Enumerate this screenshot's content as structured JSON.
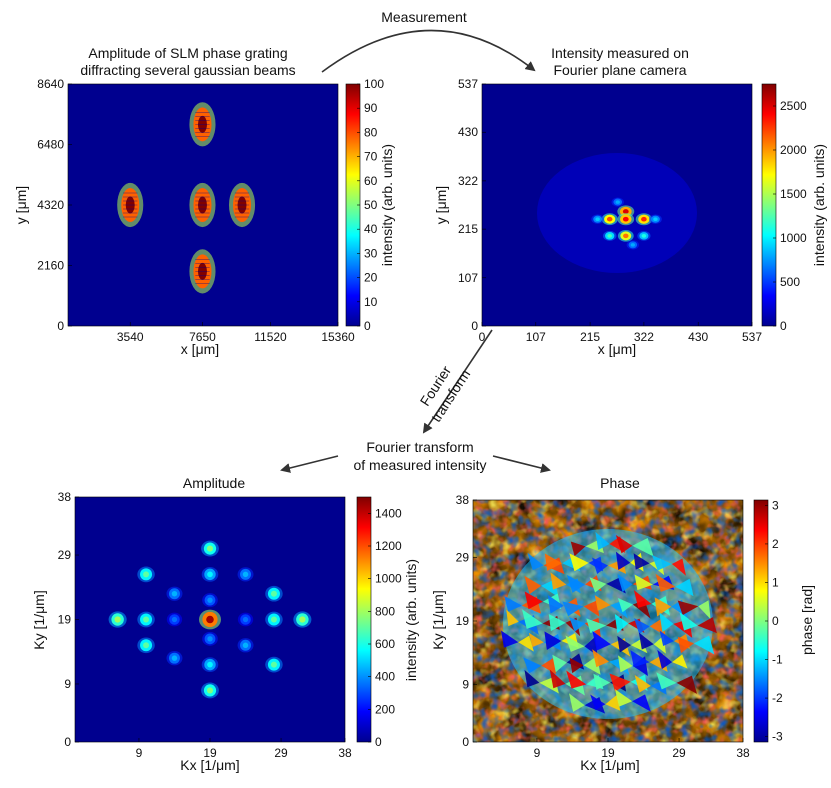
{
  "figure": {
    "top_arrow_label": "Measurement",
    "side_arrow_label": [
      "Fourier",
      "transform"
    ],
    "center_label": [
      "Fourier transform",
      "of measured intensity"
    ]
  },
  "colormap": "jet",
  "chart_data": [
    {
      "type": "heatmap",
      "title": [
        "Amplitude of SLM phase grating",
        "diffracting several gaussian beams"
      ],
      "xlabel": "x [μm]",
      "ylabel": "y [μm]",
      "xticks": [
        "3540",
        "7650",
        "11520",
        "15360"
      ],
      "yticks": [
        "0",
        "2160",
        "4320",
        "6480",
        "8640"
      ],
      "xlim": [
        0,
        15360
      ],
      "ylim": [
        0,
        8640
      ],
      "colorbar": {
        "label": "intensity (arb. units)",
        "ticks": [
          "0",
          "10",
          "20",
          "30",
          "40",
          "50",
          "60",
          "70",
          "80",
          "90",
          "100"
        ],
        "range": [
          0,
          100
        ]
      },
      "spots": [
        {
          "x": 3540,
          "y": 4320,
          "value": 100
        },
        {
          "x": 7650,
          "y": 4320,
          "value": 100
        },
        {
          "x": 9900,
          "y": 4320,
          "value": 100
        },
        {
          "x": 7650,
          "y": 7200,
          "value": 100
        },
        {
          "x": 7650,
          "y": 1950,
          "value": 100
        }
      ]
    },
    {
      "type": "heatmap",
      "title": [
        "Intensity measured on",
        "Fourier plane camera"
      ],
      "xlabel": "x [μm]",
      "ylabel": "y [μm]",
      "xticks": [
        "0",
        "107",
        "215",
        "322",
        "430",
        "537"
      ],
      "yticks": [
        "0",
        "107",
        "215",
        "322",
        "430",
        "537"
      ],
      "xlim": [
        0,
        537
      ],
      "ylim": [
        0,
        537
      ],
      "colorbar": {
        "label": "intensity (arb. units)",
        "ticks": [
          "0",
          "500",
          "1000",
          "1500",
          "2000",
          "2500"
        ],
        "range": [
          0,
          2750
        ]
      },
      "spots": [
        {
          "x": 286,
          "y": 254,
          "value": 2500
        },
        {
          "x": 254,
          "y": 237,
          "value": 2200
        },
        {
          "x": 286,
          "y": 237,
          "value": 2400
        },
        {
          "x": 322,
          "y": 237,
          "value": 2300
        },
        {
          "x": 286,
          "y": 200,
          "value": 2100
        },
        {
          "x": 254,
          "y": 200,
          "value": 1200
        },
        {
          "x": 322,
          "y": 200,
          "value": 1100
        },
        {
          "x": 230,
          "y": 237,
          "value": 900
        },
        {
          "x": 345,
          "y": 237,
          "value": 900
        },
        {
          "x": 270,
          "y": 275,
          "value": 800
        },
        {
          "x": 300,
          "y": 180,
          "value": 800
        }
      ]
    },
    {
      "type": "heatmap",
      "title": "Amplitude",
      "xlabel": "Kx [1/μm]",
      "ylabel": "Ky [1/μm]",
      "xticks": [
        "9",
        "19",
        "29",
        "38"
      ],
      "yticks": [
        "0",
        "9",
        "19",
        "29",
        "38"
      ],
      "xlim": [
        0,
        38
      ],
      "ylim": [
        0,
        38
      ],
      "colorbar": {
        "label": "intensity (arb. units)",
        "ticks": [
          "0",
          "200",
          "400",
          "600",
          "800",
          "1000",
          "1200",
          "1400"
        ],
        "range": [
          0,
          1500
        ]
      },
      "spots": [
        {
          "x": 19,
          "y": 19,
          "value": 1450
        },
        {
          "x": 19,
          "y": 30,
          "value": 750
        },
        {
          "x": 19,
          "y": 8,
          "value": 750
        },
        {
          "x": 6,
          "y": 19,
          "value": 800
        },
        {
          "x": 32,
          "y": 19,
          "value": 800
        },
        {
          "x": 10,
          "y": 26,
          "value": 700
        },
        {
          "x": 10,
          "y": 15,
          "value": 700
        },
        {
          "x": 10,
          "y": 19,
          "value": 700
        },
        {
          "x": 28,
          "y": 23,
          "value": 700
        },
        {
          "x": 28,
          "y": 12,
          "value": 700
        },
        {
          "x": 28,
          "y": 19,
          "value": 700
        },
        {
          "x": 19,
          "y": 26,
          "value": 550
        },
        {
          "x": 19,
          "y": 12,
          "value": 550
        },
        {
          "x": 14,
          "y": 23,
          "value": 450
        },
        {
          "x": 14,
          "y": 13,
          "value": 450
        },
        {
          "x": 24,
          "y": 26,
          "value": 450
        },
        {
          "x": 24,
          "y": 15,
          "value": 450
        },
        {
          "x": 14,
          "y": 19,
          "value": 350
        },
        {
          "x": 24,
          "y": 19,
          "value": 350
        },
        {
          "x": 19,
          "y": 22,
          "value": 400
        },
        {
          "x": 19,
          "y": 16,
          "value": 400
        }
      ]
    },
    {
      "type": "heatmap",
      "title": "Phase",
      "xlabel": "Kx [1/μm]",
      "ylabel": "Ky [1/μm]",
      "xticks": [
        "9",
        "19",
        "29",
        "38"
      ],
      "yticks": [
        "0",
        "9",
        "19",
        "29",
        "38"
      ],
      "xlim": [
        0,
        38
      ],
      "ylim": [
        0,
        38
      ],
      "colorbar": {
        "label": "phase [rad]",
        "ticks": [
          "-3",
          "-2",
          "-1",
          "0",
          "1",
          "2",
          "3"
        ],
        "range": [
          -3.14,
          3.14
        ]
      }
    }
  ]
}
